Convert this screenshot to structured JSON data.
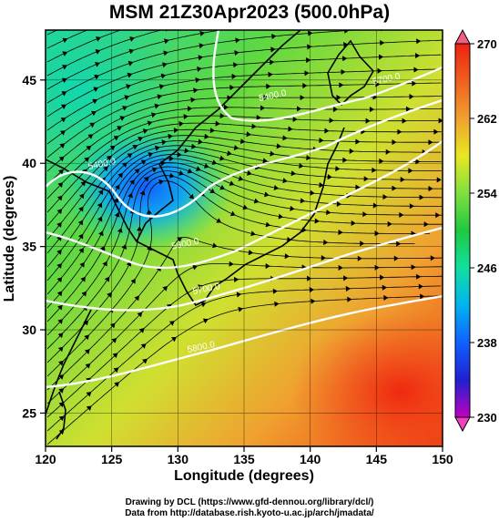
{
  "title": "MSM 21Z30Apr2023 (500.0hPa)",
  "map": {
    "lon_range": [
      120,
      150
    ],
    "lat_range": [
      23,
      48
    ],
    "x_ticks": [
      120,
      125,
      130,
      135,
      140,
      145,
      150
    ],
    "y_ticks": [
      25,
      30,
      35,
      40,
      45
    ],
    "xlabel": "Longitude (degrees)",
    "ylabel": "Latitude  (degrees)",
    "grid": true
  },
  "colorbar": {
    "min": 230,
    "max": 270,
    "ticks": [
      "270",
      "262",
      "254",
      "246",
      "238",
      "230"
    ],
    "colors": [
      "#c000c0",
      "#2020d0",
      "#1060ff",
      "#00b4f0",
      "#10e0a0",
      "#20c840",
      "#80e040",
      "#e8e820",
      "#f0a030",
      "#f06020",
      "#f02010"
    ]
  },
  "contours": [
    {
      "label": "5400.0",
      "lon": 137.2,
      "lat": 43.9
    },
    {
      "label": "5400.0",
      "lon": 124.3,
      "lat": 39.8
    },
    {
      "label": "5700.0",
      "lon": 145.8,
      "lat": 44.9
    },
    {
      "label": "5600.0",
      "lon": 130.6,
      "lat": 35.0
    },
    {
      "label": "5700.0",
      "lon": 132.2,
      "lat": 32.3
    },
    {
      "label": "5800.0",
      "lon": 131.8,
      "lat": 28.8
    }
  ],
  "credits": {
    "line1": "Drawing by DCL (https://www.gfd-dennou.org/library/dcl/)",
    "line2": "Data from http://database.rish.kyoto-u.ac.jp/arch/jmadata/"
  }
}
